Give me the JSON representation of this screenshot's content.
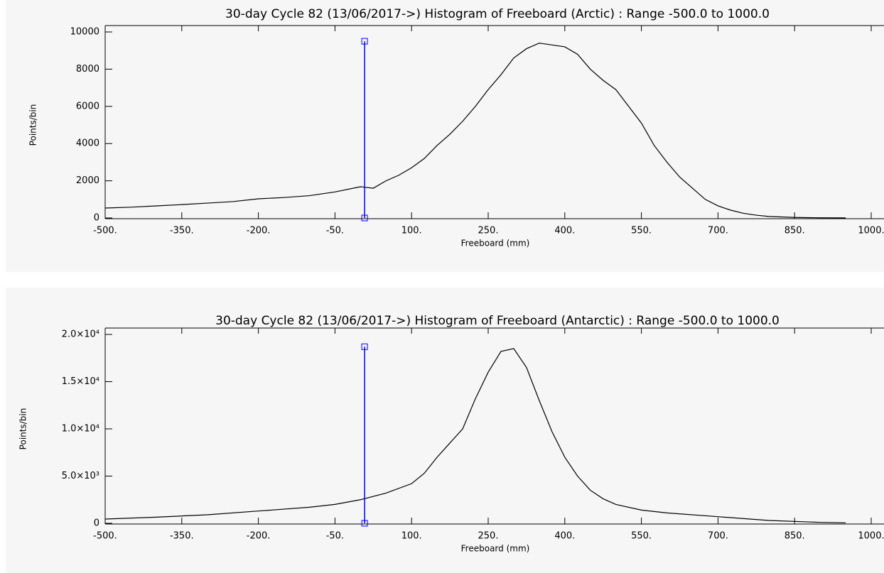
{
  "chart_data": [
    {
      "type": "line",
      "title": "30-day Cycle 82 (13/06/2017->) Histogram of Freeboard (Arctic) :  Range -500.0 to 1000.0",
      "x_label": "Freeboard (mm)",
      "y_label": "Points/bin",
      "xlim": [
        -500,
        1000
      ],
      "ylim": [
        0,
        10000
      ],
      "xticks": [
        {
          "value": -500,
          "label": "-500."
        },
        {
          "value": -350,
          "label": "-350."
        },
        {
          "value": -200,
          "label": "-200."
        },
        {
          "value": -50,
          "label": "-50."
        },
        {
          "value": 100,
          "label": "100."
        },
        {
          "value": 250,
          "label": "250."
        },
        {
          "value": 400,
          "label": "400."
        },
        {
          "value": 550,
          "label": "550."
        },
        {
          "value": 700,
          "label": "700."
        },
        {
          "value": 850,
          "label": "850."
        },
        {
          "value": 1000,
          "label": "1000."
        }
      ],
      "yticks": [
        0,
        2000,
        4000,
        6000,
        8000,
        10000
      ],
      "x": [
        -500,
        -450,
        -400,
        -350,
        -300,
        -250,
        -200,
        -150,
        -100,
        -50,
        0,
        25,
        50,
        75,
        100,
        125,
        150,
        175,
        200,
        225,
        250,
        275,
        300,
        325,
        350,
        375,
        400,
        425,
        450,
        475,
        500,
        525,
        550,
        575,
        600,
        625,
        650,
        675,
        700,
        725,
        750,
        775,
        800,
        850,
        900,
        950
      ],
      "series": [
        {
          "name": "Arctic",
          "color": "#000000",
          "values": [
            535,
            580,
            650,
            720,
            800,
            880,
            1030,
            1100,
            1200,
            1400,
            1680,
            1600,
            2000,
            2300,
            2700,
            3200,
            3900,
            4500,
            5200,
            6000,
            6900,
            7700,
            8600,
            9100,
            9400,
            9300,
            9200,
            8800,
            8000,
            7400,
            6900,
            6000,
            5100,
            3900,
            3000,
            2200,
            1600,
            1000,
            650,
            420,
            250,
            150,
            80,
            30,
            10,
            5
          ]
        }
      ],
      "cursor": {
        "x": 8,
        "ymin": 0,
        "ymax": 9500,
        "color": "#0000ff"
      }
    },
    {
      "type": "line",
      "title": "30-day Cycle 82 (13/06/2017->) Histogram of Freeboard (Antarctic) :  Range -500.0 to 1000.0",
      "x_label": "Freeboard (mm)",
      "y_label": "Points/bin",
      "xlim": [
        -500,
        1000
      ],
      "ylim": [
        0,
        20000
      ],
      "xticks": [
        {
          "value": -500,
          "label": "-500."
        },
        {
          "value": -350,
          "label": "-350."
        },
        {
          "value": -200,
          "label": "-200."
        },
        {
          "value": -50,
          "label": "-50."
        },
        {
          "value": 100,
          "label": "100."
        },
        {
          "value": 250,
          "label": "250."
        },
        {
          "value": 400,
          "label": "400."
        },
        {
          "value": 550,
          "label": "550."
        },
        {
          "value": 700,
          "label": "700."
        },
        {
          "value": 850,
          "label": "850."
        },
        {
          "value": 1000,
          "label": "1000."
        }
      ],
      "yticks": [
        0,
        {
          "value": 5000,
          "label": "5.0×10³"
        },
        {
          "value": 10000,
          "label": "1.0×10⁴"
        },
        {
          "value": 15000,
          "label": "1.5×10⁴"
        },
        {
          "value": 20000,
          "label": "2.0×10⁴"
        }
      ],
      "x": [
        -500,
        -400,
        -300,
        -200,
        -100,
        -50,
        0,
        50,
        100,
        125,
        150,
        175,
        200,
        225,
        250,
        275,
        300,
        325,
        350,
        375,
        400,
        425,
        450,
        475,
        500,
        550,
        600,
        700,
        800,
        900,
        950
      ],
      "series": [
        {
          "name": "Antarctic",
          "color": "#000000",
          "values": [
            450,
            650,
            900,
            1300,
            1700,
            2000,
            2500,
            3200,
            4200,
            5300,
            7000,
            8500,
            10000,
            13200,
            16000,
            18200,
            18500,
            16500,
            13000,
            9700,
            7000,
            5000,
            3500,
            2600,
            2000,
            1400,
            1100,
            700,
            300,
            100,
            50
          ]
        }
      ],
      "cursor": {
        "x": 8,
        "ymin": 0,
        "ymax": 18700,
        "color": "#0000ff"
      }
    }
  ]
}
